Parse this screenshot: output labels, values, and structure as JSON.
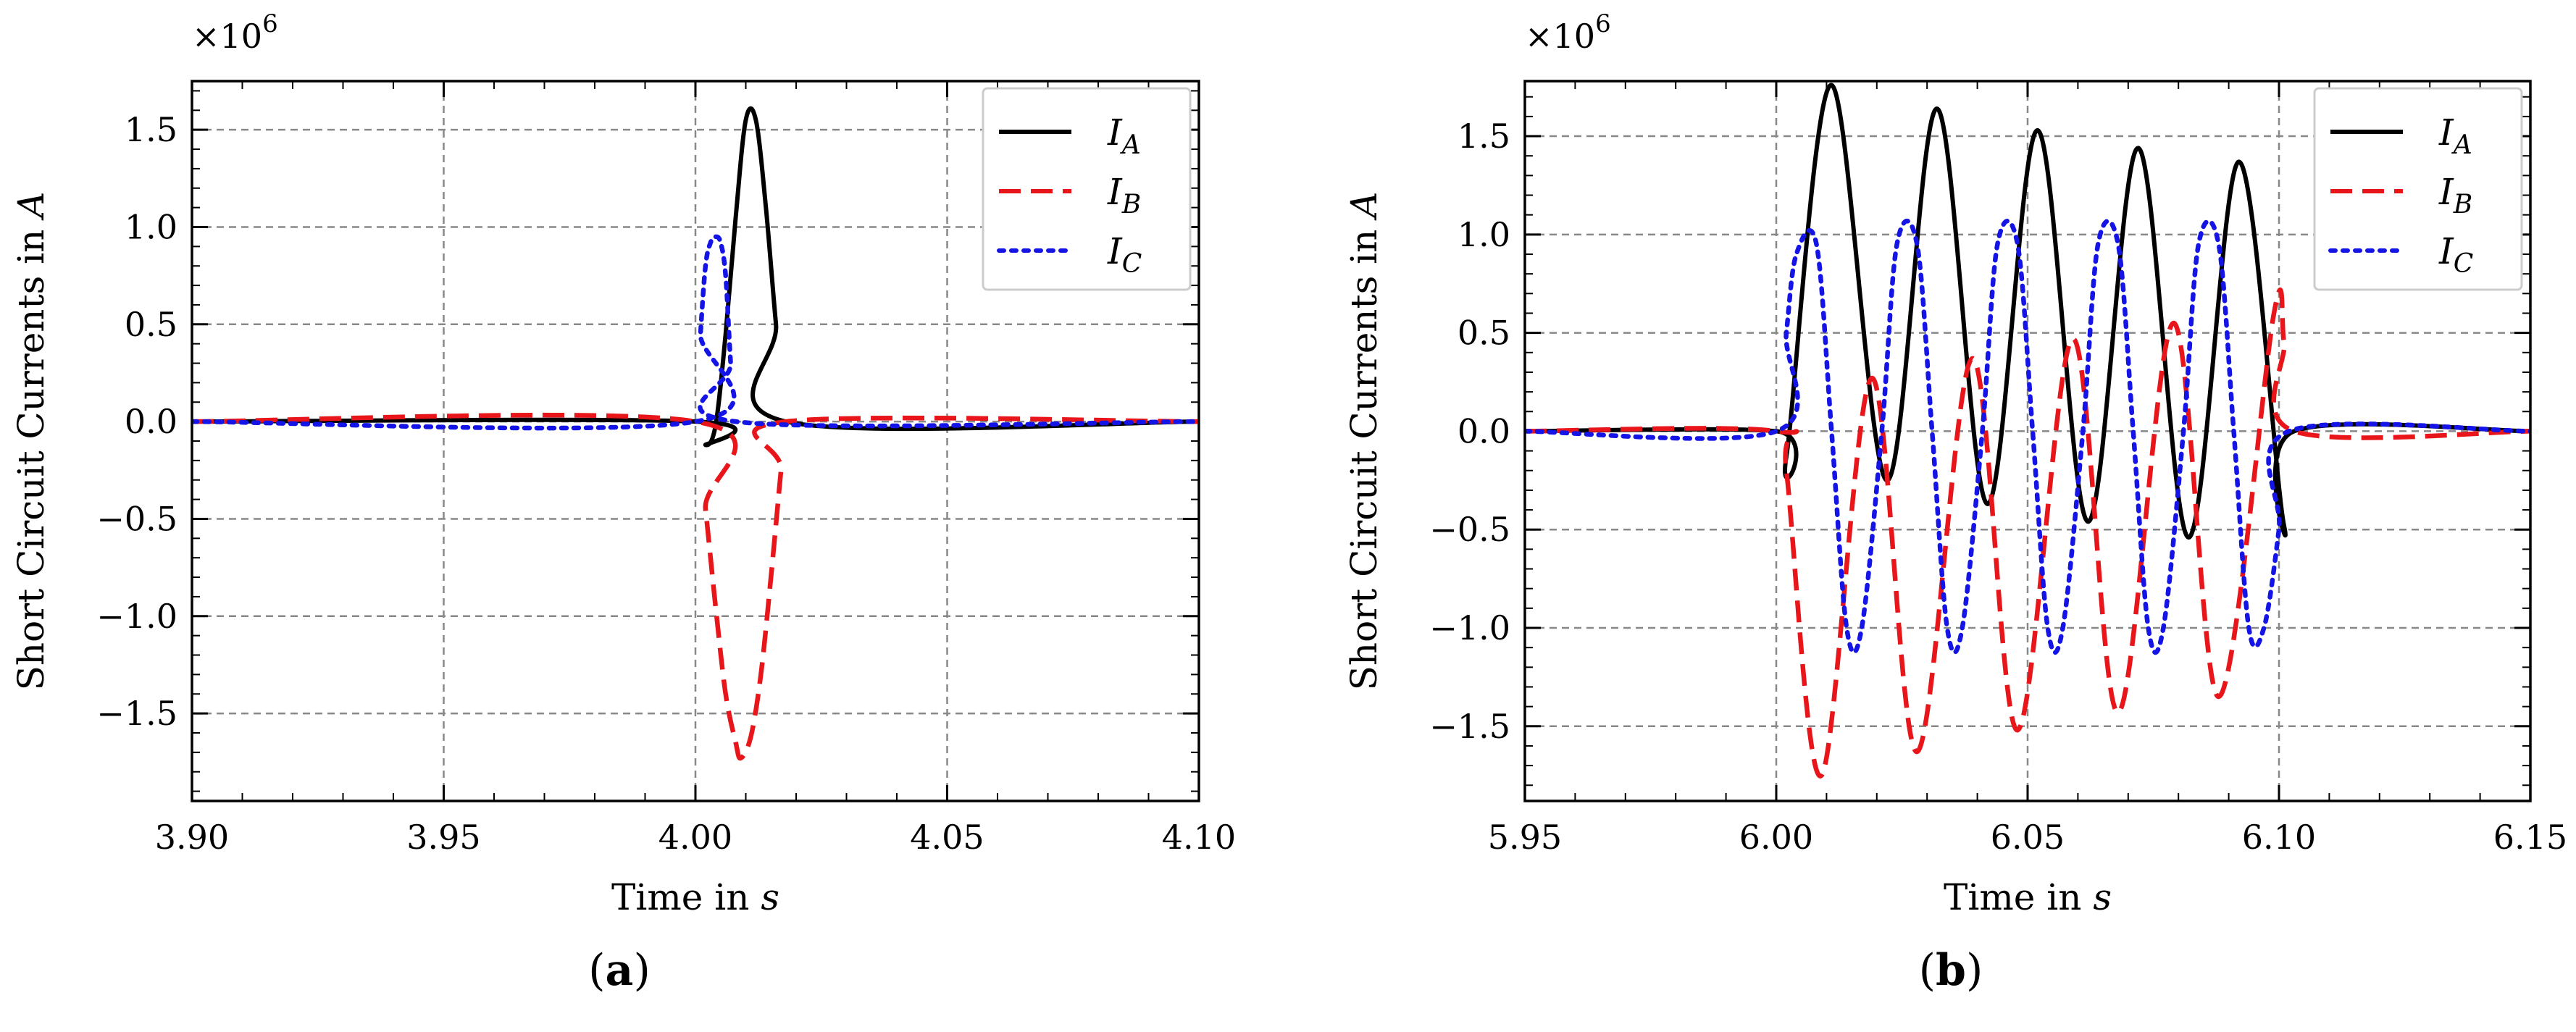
{
  "figure": {
    "panels": [
      "(a)",
      "(b)"
    ]
  },
  "chart_data": [
    {
      "type": "line",
      "panel_label": "(a)",
      "xlabel": "Time in s",
      "ylabel": "Short Circuit Currents in A",
      "y_multiplier": "×10^6",
      "xlim": [
        3.9,
        4.1
      ],
      "ylim": [
        -1.95,
        1.75
      ],
      "xticks": [
        "3.90",
        "3.95",
        "4.00",
        "4.05",
        "4.10"
      ],
      "yticks": [
        "−1.5",
        "−1.0",
        "−0.5",
        "0.0",
        "0.5",
        "1.0",
        "1.5"
      ],
      "grid": true,
      "legend_position": "top-right",
      "series": [
        {
          "name": "I_A",
          "color": "#000000",
          "style": "solid",
          "x": [
            3.9,
            4.0,
            4.002,
            4.004,
            4.006,
            4.008,
            4.01,
            4.012,
            4.014,
            4.016,
            4.018,
            4.1
          ],
          "y": [
            0,
            0,
            -0.12,
            -0.02,
            0.45,
            1.05,
            1.55,
            1.55,
            1.1,
            0.5,
            0,
            0
          ]
        },
        {
          "name": "I_B",
          "color": "#e8161a",
          "style": "dashed",
          "x": [
            3.9,
            4.0,
            4.002,
            4.004,
            4.006,
            4.008,
            4.009,
            4.011,
            4.013,
            4.015,
            4.017,
            4.018,
            4.1
          ],
          "y": [
            0,
            0,
            -0.45,
            -0.95,
            -1.4,
            -1.65,
            -1.73,
            -1.62,
            -1.3,
            -0.8,
            -0.25,
            0,
            0
          ]
        },
        {
          "name": "I_C",
          "color": "#1414e6",
          "style": "dotted",
          "x": [
            3.9,
            4.0,
            4.001,
            4.002,
            4.003,
            4.004,
            4.005,
            4.006,
            4.007,
            4.008,
            4.1
          ],
          "y": [
            0,
            0,
            0.45,
            0.8,
            0.92,
            0.95,
            0.92,
            0.75,
            0.3,
            0,
            0
          ]
        }
      ]
    },
    {
      "type": "line",
      "panel_label": "(b)",
      "xlabel": "Time in s",
      "ylabel": "Short Circuit Currents in A",
      "y_multiplier": "×10^6",
      "xlim": [
        5.95,
        6.15
      ],
      "ylim": [
        -1.88,
        1.78
      ],
      "xticks": [
        "5.95",
        "6.00",
        "6.05",
        "6.10",
        "6.15"
      ],
      "yticks": [
        "−1.5",
        "−1.0",
        "−0.5",
        "0.0",
        "0.5",
        "1.0",
        "1.5"
      ],
      "grid": true,
      "legend_position": "top-right",
      "series": [
        {
          "name": "I_A",
          "color": "#000000",
          "style": "solid",
          "x": [
            5.95,
            6.0,
            6.002,
            6.011,
            6.022,
            6.032,
            6.042,
            6.052,
            6.062,
            6.072,
            6.082,
            6.092,
            6.101,
            6.103,
            6.15
          ],
          "y": [
            0,
            0,
            -0.13,
            1.76,
            -0.25,
            1.64,
            -0.37,
            1.53,
            -0.46,
            1.44,
            -0.54,
            1.37,
            -0.48,
            0,
            0
          ]
        },
        {
          "name": "I_B",
          "color": "#e8161a",
          "style": "dashed",
          "x": [
            5.95,
            6.0,
            6.002,
            6.009,
            6.019,
            6.028,
            6.039,
            6.048,
            6.059,
            6.068,
            6.079,
            6.088,
            6.099,
            6.101,
            6.103,
            6.15
          ],
          "y": [
            0,
            0,
            -0.2,
            -1.75,
            0.27,
            -1.63,
            0.37,
            -1.52,
            0.47,
            -1.43,
            0.55,
            -1.35,
            0.6,
            0.45,
            0,
            0
          ]
        },
        {
          "name": "I_C",
          "color": "#1414e6",
          "style": "dotted",
          "x": [
            5.95,
            6.0,
            6.002,
            6.004,
            6.008,
            6.011,
            6.014,
            6.017,
            6.021,
            6.024,
            6.028,
            6.031,
            6.034,
            6.037,
            6.041,
            6.044,
            6.048,
            6.051,
            6.054,
            6.057,
            6.061,
            6.064,
            6.068,
            6.071,
            6.074,
            6.077,
            6.081,
            6.084,
            6.088,
            6.091,
            6.094,
            6.097,
            6.1,
            6.102,
            6.15
          ],
          "y": [
            0,
            0,
            0.5,
            0.9,
            0.95,
            0.0,
            -1.0,
            -1.0,
            0.0,
            0.95,
            0.95,
            0.0,
            -1.0,
            -1.0,
            0.0,
            0.95,
            0.95,
            0.0,
            -1.0,
            -1.0,
            0.0,
            0.95,
            0.95,
            0.0,
            -1.0,
            -1.0,
            0.0,
            0.95,
            0.95,
            0.0,
            -1.0,
            -1.0,
            -0.5,
            0,
            0
          ]
        }
      ]
    }
  ]
}
